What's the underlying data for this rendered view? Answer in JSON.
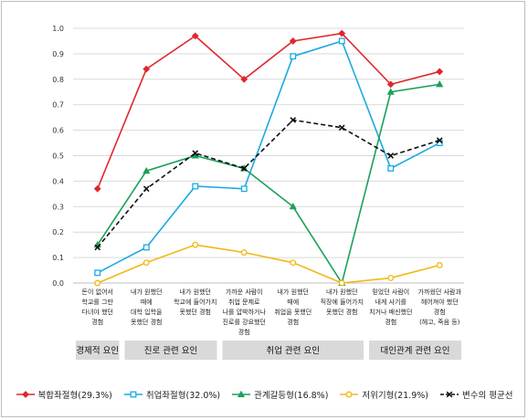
{
  "chart_data": {
    "type": "line",
    "title": "",
    "xlabel": "",
    "ylabel": "",
    "ylim": [
      0,
      1.0
    ],
    "yticks": [
      "0.0",
      "0.1",
      "0.2",
      "0.3",
      "0.4",
      "0.5",
      "0.6",
      "0.7",
      "0.8",
      "0.9",
      "1.0"
    ],
    "grid": true,
    "legend_position": "bottom",
    "categories": [
      [
        "돈이 없어서",
        "학교를 그만",
        "다녀야 했던",
        "경험"
      ],
      [
        "내가 원했던",
        "때에",
        "대학 입학을",
        "못했던 경험"
      ],
      [
        "내가 원했던",
        "학교에 들어가지",
        "못했던 경험"
      ],
      [
        "가까운 사람이",
        "취업 문제로",
        "나를 압박하거나",
        "진로를 강요했던",
        "경험"
      ],
      [
        "내가 원했던",
        "때에",
        "취업을 못했던",
        "경험"
      ],
      [
        "내가 원했던",
        "직장에 들어가지",
        "못했던 경험"
      ],
      [
        "믿었던 사람이",
        "내게 사기를",
        "치거나 배신했던",
        "경험"
      ],
      [
        "가까웠던 사람과",
        "헤어져야 했던",
        "경험",
        "(헤고, 죽음 등)"
      ]
    ],
    "groups": [
      {
        "label": "경제적 요인",
        "from": 0,
        "to": 0
      },
      {
        "label": "진로 관련 요인",
        "from": 1,
        "to": 2
      },
      {
        "label": "취업 관련 요인",
        "from": 3,
        "to": 5
      },
      {
        "label": "대인관계 관련 요인",
        "from": 6,
        "to": 7
      }
    ],
    "series": [
      {
        "name": "복합좌절형(29.3%)",
        "color": "#e0262d",
        "marker": "diamond",
        "dash": false,
        "values": [
          0.37,
          0.84,
          0.97,
          0.8,
          0.95,
          0.98,
          0.78,
          0.83
        ]
      },
      {
        "name": "취업좌절형(32.0%)",
        "color": "#1ba9e1",
        "marker": "square",
        "dash": false,
        "values": [
          0.04,
          0.14,
          0.38,
          0.37,
          0.89,
          0.95,
          0.45,
          0.55
        ]
      },
      {
        "name": "관계갈등형(16.8%)",
        "color": "#1aa05a",
        "marker": "triangle",
        "dash": false,
        "values": [
          0.15,
          0.44,
          0.5,
          0.45,
          0.3,
          0.0,
          0.75,
          0.78
        ]
      },
      {
        "name": "저위기형(21.9%)",
        "color": "#f2b716",
        "marker": "circle",
        "dash": false,
        "values": [
          0.0,
          0.08,
          0.15,
          0.12,
          0.08,
          0.0,
          0.02,
          0.07
        ]
      },
      {
        "name": "변수의 평균선",
        "color": "#111111",
        "marker": "cross",
        "dash": true,
        "values": [
          0.14,
          0.37,
          0.51,
          0.45,
          0.64,
          0.61,
          0.5,
          0.56
        ]
      }
    ]
  }
}
